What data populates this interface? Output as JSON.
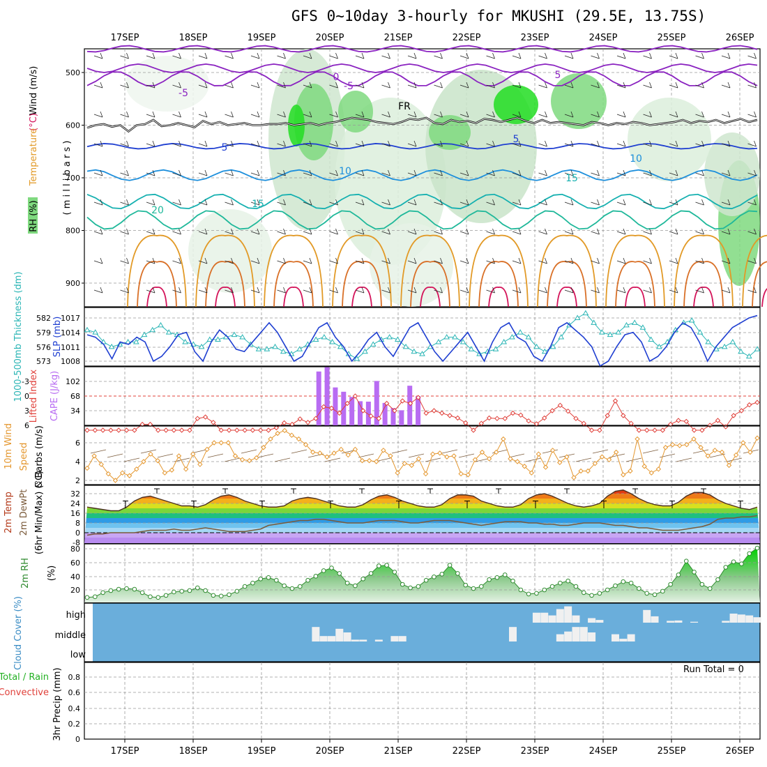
{
  "title": "GFS 0~10day 3-hourly for MKUSHI (29.5E, 13.75S)",
  "dates": [
    "17SEP",
    "18SEP",
    "19SEP",
    "20SEP",
    "21SEP",
    "22SEP",
    "23SEP",
    "24SEP",
    "25SEP",
    "26SEP"
  ],
  "run_total": "Run Total = 0",
  "colors": {
    "rh_green": "#7fd97f",
    "slp": "#1f3fd1",
    "thickness": "#2ab5b5",
    "lifted": "#e0403a",
    "cape": "#b86cf2",
    "wind": "#e4972f",
    "rh2m": "#2f8a2f",
    "cloud_bg": "#6aaedb",
    "cloud_bar": "#f0f0f0"
  },
  "chart_data": [
    {
      "type": "heatmap",
      "name_panel": "upper-air",
      "ylabel_parts": {
        "rh": "RH (%)",
        "temperature": "Temperature",
        "temp_unit": "(°C)",
        "wind": "Wind (m/s)",
        "pressure": "( m i l l i b a r s )"
      },
      "yticks": [
        "500",
        "600",
        "700",
        "800",
        "900"
      ],
      "contour_labels": [
        "5",
        "0",
        "-5",
        "FR",
        "5",
        "10",
        "15",
        "20",
        "-5",
        "5",
        "10",
        "15"
      ],
      "freezing_level_mb": [
        605,
        600,
        598,
        603,
        600,
        612,
        600,
        598,
        590,
        602,
        600,
        596,
        600,
        604,
        592,
        598,
        594,
        600,
        598,
        596,
        600,
        600,
        598,
        598,
        596,
        600,
        598,
        596,
        600,
        596,
        594,
        590,
        586,
        588,
        590,
        594,
        596,
        598,
        594,
        588,
        590,
        586,
        596,
        598,
        590,
        594,
        592,
        596,
        588,
        590,
        594,
        590,
        586,
        592,
        596,
        590,
        596,
        594,
        596,
        598,
        600,
        594,
        596,
        600,
        596,
        598,
        594,
        596,
        600,
        598,
        596,
        594,
        590,
        596,
        592,
        594,
        590,
        596,
        592,
        588,
        594,
        590
      ]
    },
    {
      "type": "line",
      "name_panel": "slp-thickness",
      "ylabel_left": "1000-500mb Thickness (dm)",
      "ylabel_right": "SLP (mb)",
      "yticks_left": [
        "582",
        "579",
        "576",
        "573"
      ],
      "yticks_right": [
        "1017",
        "1014",
        "1011",
        "1008"
      ],
      "series": [
        {
          "name": "SLP (mb)",
          "values": [
            1013.5,
            1013,
            1011.5,
            1008.5,
            1012,
            1011.5,
            1013,
            1012,
            1008,
            1009,
            1011,
            1013.5,
            1014,
            1010,
            1008,
            1012,
            1014.5,
            1013,
            1010.5,
            1010,
            1012,
            1014,
            1016,
            1014,
            1011,
            1008,
            1009,
            1012,
            1015,
            1016,
            1013,
            1011,
            1008,
            1010,
            1012.5,
            1014,
            1011,
            1009,
            1012,
            1015,
            1016,
            1013,
            1010,
            1008,
            1010,
            1012,
            1014,
            1011,
            1008,
            1012,
            1015,
            1016,
            1013,
            1012,
            1009,
            1008,
            1011,
            1015,
            1016,
            1014.5,
            1013,
            1011,
            1007,
            1008,
            1011,
            1013.5,
            1014,
            1012,
            1008,
            1009,
            1011,
            1014,
            1016,
            1015,
            1012,
            1008,
            1011,
            1013,
            1015,
            1016,
            1017,
            1017.5
          ]
        },
        {
          "name": "Thickness (dm)",
          "values": [
            579.5,
            579,
            577,
            576,
            576.5,
            577,
            577,
            578.5,
            579.5,
            580.5,
            579,
            578.5,
            577,
            576.5,
            576,
            577.5,
            577.5,
            578,
            578.5,
            578,
            576.5,
            575.5,
            575.5,
            576,
            575,
            574.5,
            575.5,
            576.5,
            577.5,
            578,
            577,
            576,
            574.5,
            573.5,
            575,
            576.5,
            577.5,
            578,
            577.5,
            576,
            575,
            574.5,
            576,
            577,
            578,
            578,
            577,
            575.5,
            574.5,
            575,
            575.5,
            577,
            578,
            579,
            578,
            576,
            575,
            576,
            578,
            580.5,
            582,
            583,
            581,
            579,
            578.5,
            579,
            580.5,
            581,
            580,
            577.5,
            576,
            577,
            579.5,
            581,
            581.5,
            579,
            577,
            575.5,
            576,
            577,
            575,
            574,
            575.5
          ]
        }
      ]
    },
    {
      "type": "bar",
      "name_panel": "cape-lifted",
      "ylabel_left": "Lifted Index",
      "ylabel_right": "CAPE (J/kg)",
      "yticks_left": [
        "-3",
        "0",
        "3",
        "6"
      ],
      "yticks_right": [
        "102",
        "68",
        "34"
      ],
      "series": [
        {
          "name": "CAPE (J/kg)",
          "values": [
            0,
            0,
            0,
            0,
            0,
            0,
            0,
            0,
            0,
            0,
            0,
            0,
            0,
            0,
            0,
            0,
            0,
            0,
            0,
            0,
            0,
            0,
            0,
            0,
            0,
            0,
            0,
            0,
            125,
            135,
            88,
            78,
            66,
            56,
            55,
            103,
            52,
            40,
            35,
            92,
            68,
            0,
            0,
            0,
            0,
            0,
            0,
            0,
            0,
            0,
            0,
            0,
            0,
            0,
            0,
            0,
            0,
            0,
            0,
            0,
            0,
            0,
            0,
            0,
            0,
            0,
            0,
            0,
            0,
            0,
            0,
            0,
            0,
            0,
            0,
            0,
            0,
            0,
            0,
            0,
            0,
            0
          ]
        },
        {
          "name": "Lifted Index",
          "values": [
            7,
            7,
            7,
            7,
            7,
            7,
            7,
            5.8,
            5.8,
            7,
            7,
            7,
            7,
            7,
            4.6,
            4.3,
            5.4,
            7,
            7,
            7,
            7,
            7,
            7,
            7,
            6.5,
            5.5,
            5.8,
            4.7,
            5.4,
            4.6,
            2.2,
            2.5,
            3.5,
            1.5,
            0,
            3,
            4.1,
            4.6,
            1.5,
            3,
            1,
            1.5,
            0.3,
            3.5,
            3,
            3.5,
            4,
            4.5,
            5.5,
            7,
            5.6,
            4.5,
            4.6,
            4.6,
            3.5,
            3.9,
            5.1,
            5.7,
            4.5,
            3,
            1.9,
            3.1,
            4.6,
            5.6,
            7,
            7,
            4,
            1,
            4,
            5.6,
            7,
            7,
            7,
            7,
            5.8,
            5,
            5.2,
            7,
            7,
            6,
            5,
            6.3,
            4,
            3,
            1.8,
            1.3
          ]
        }
      ]
    },
    {
      "type": "line",
      "name_panel": "wind10m",
      "ylabel_left": "10m Wind",
      "ylabel_mid": "Speed",
      "ylabel_right": "& Barbs (m/s)",
      "yticks": [
        "2",
        "4",
        "6"
      ],
      "series": [
        {
          "name": "10m wind speed",
          "values": [
            3.3,
            4.6,
            3.7,
            2.7,
            2,
            2.8,
            2.5,
            3.2,
            4,
            4.8,
            4.1,
            2.8,
            3.1,
            4.6,
            3.2,
            4.8,
            3.7,
            5.3,
            6,
            6,
            6,
            4.6,
            4.2,
            4.1,
            4.4,
            5.5,
            6.4,
            7,
            7.3,
            6.8,
            6.4,
            5.8,
            5,
            4.9,
            4.5,
            4.9,
            5.3,
            4.7,
            5.3,
            4.1,
            4.1,
            4,
            5.2,
            4.6,
            2.8,
            3.8,
            3.6,
            4.3,
            2.7,
            4.8,
            4.9,
            4.5,
            4.6,
            2.7,
            2.6,
            4.2,
            5,
            4.3,
            5,
            6.4,
            4.3,
            4,
            3.5,
            2.8,
            4.8,
            3.4,
            5.2,
            3.9,
            4.5,
            2.3,
            3,
            3,
            3.8,
            4.5,
            4.2,
            5,
            2.6,
            3,
            6.4,
            3.5,
            2.8,
            3.2,
            5.5,
            5.8,
            5.7,
            5.8,
            6.4,
            5.5,
            4.6,
            5.2,
            5,
            3.6,
            4.7,
            6,
            5,
            6.5
          ]
        }
      ]
    },
    {
      "type": "area",
      "name_panel": "temp2m",
      "ylabel_left": "2m Temp",
      "ylabel_mid": "2m DewPt",
      "ylabel_right": "(6hr Min/Max) (°C)",
      "yticks": [
        "32",
        "24",
        "16",
        "8",
        "0",
        "-8"
      ],
      "series": [
        {
          "name": "2m Temp",
          "values": [
            21,
            20,
            19,
            18,
            18,
            21,
            26,
            29,
            30,
            28,
            26,
            24,
            22,
            22,
            21,
            23,
            27,
            30,
            31,
            29,
            26,
            24,
            22,
            21,
            21,
            22,
            26,
            28,
            29,
            28,
            26,
            24,
            22,
            21,
            21,
            23,
            27,
            30,
            31,
            29,
            26,
            24,
            22,
            21,
            21,
            23,
            28,
            31,
            31,
            30,
            26,
            24,
            22,
            21,
            21,
            23,
            28,
            31,
            32,
            30,
            27,
            24,
            22,
            21,
            22,
            24,
            30,
            34,
            35,
            32,
            28,
            25,
            23,
            22,
            22,
            25,
            30,
            33,
            33,
            31,
            27,
            24,
            22,
            20,
            19,
            21
          ]
        },
        {
          "name": "2m DewPt",
          "values": [
            -2,
            -1,
            -1,
            0,
            0,
            0,
            0,
            1,
            2,
            2,
            2,
            3,
            2,
            2,
            3,
            4,
            3,
            2,
            1,
            1,
            1,
            2,
            3,
            6,
            7,
            8,
            9,
            10,
            10,
            11,
            11,
            10,
            9,
            8,
            8,
            8,
            9,
            10,
            10,
            10,
            9,
            8,
            8,
            9,
            10,
            10,
            10,
            9,
            8,
            7,
            6,
            7,
            8,
            9,
            9,
            9,
            8,
            8,
            7,
            7,
            6,
            6,
            7,
            8,
            8,
            8,
            7,
            6,
            6,
            5,
            4,
            4,
            3,
            2,
            2,
            2,
            3,
            4,
            5,
            7,
            11,
            12,
            12,
            13,
            13,
            14
          ]
        }
      ]
    },
    {
      "type": "area",
      "name_panel": "rh2m",
      "ylabel_left": "2m RH",
      "ylabel_right": "(%)",
      "yticks": [
        "80",
        "60",
        "40",
        "20"
      ],
      "series": [
        {
          "name": "2m RH",
          "values": [
            9,
            10,
            16,
            19,
            21,
            22,
            21,
            16,
            10,
            9,
            12,
            17,
            18,
            19,
            23,
            19,
            12,
            11,
            13,
            18,
            25,
            30,
            36,
            38,
            34,
            26,
            22,
            25,
            34,
            40,
            48,
            52,
            44,
            30,
            26,
            36,
            44,
            55,
            56,
            46,
            28,
            23,
            25,
            34,
            39,
            43,
            56,
            44,
            27,
            22,
            25,
            35,
            38,
            42,
            33,
            20,
            14,
            15,
            20,
            25,
            30,
            33,
            25,
            16,
            12,
            15,
            20,
            26,
            32,
            30,
            22,
            15,
            13,
            18,
            28,
            42,
            62,
            46,
            28,
            22,
            35,
            53,
            61,
            58,
            73,
            81
          ]
        }
      ]
    },
    {
      "type": "bar",
      "name_panel": "cloud",
      "ylabel": "Cloud Cover (%)",
      "ylabels_levels": [
        "high",
        "middle",
        "low"
      ],
      "series": [
        {
          "name": "high",
          "values": [
            0,
            0,
            0,
            0,
            0,
            0,
            0,
            0,
            0,
            0,
            0,
            0,
            0,
            0,
            0,
            0,
            0,
            0,
            0,
            0,
            0,
            0,
            0,
            0,
            0,
            0,
            0,
            0,
            0,
            0,
            0,
            0,
            0,
            0,
            0,
            0,
            0,
            0,
            0,
            0,
            0,
            0,
            0,
            0,
            0,
            0,
            0,
            0,
            0,
            0,
            0,
            0,
            0,
            0,
            0,
            0,
            0,
            55,
            55,
            40,
            75,
            90,
            40,
            0,
            25,
            15,
            0,
            0,
            0,
            0,
            0,
            70,
            35,
            0,
            10,
            12,
            0,
            5,
            0,
            0,
            0,
            10,
            50,
            45,
            40,
            30
          ]
        },
        {
          "name": "middle",
          "values": [
            0,
            0,
            0,
            0,
            0,
            0,
            0,
            0,
            0,
            0,
            0,
            0,
            0,
            0,
            0,
            0,
            0,
            0,
            0,
            0,
            0,
            0,
            0,
            0,
            0,
            0,
            0,
            0,
            0,
            80,
            30,
            30,
            70,
            50,
            10,
            10,
            0,
            10,
            0,
            30,
            30,
            0,
            0,
            0,
            0,
            0,
            0,
            0,
            0,
            0,
            0,
            0,
            0,
            0,
            80,
            0,
            0,
            0,
            0,
            0,
            40,
            55,
            80,
            80,
            50,
            0,
            0,
            40,
            15,
            40,
            0,
            0,
            0,
            0,
            0,
            0,
            0,
            0,
            0,
            0,
            0,
            0,
            0,
            0,
            0,
            0
          ]
        }
      ]
    },
    {
      "type": "bar",
      "name_panel": "precip",
      "ylabel_left": "Total / Rain",
      "ylabel_left2": "Convective",
      "ylabel_right": "3hr Precip (mm)",
      "yticks": [
        "0.8",
        "0.6",
        "0.4",
        "0.2",
        "0"
      ],
      "values": [
        0,
        0,
        0,
        0,
        0,
        0,
        0,
        0,
        0,
        0,
        0,
        0,
        0,
        0,
        0,
        0,
        0,
        0,
        0,
        0,
        0,
        0,
        0,
        0,
        0,
        0,
        0,
        0,
        0,
        0,
        0,
        0,
        0,
        0,
        0,
        0,
        0,
        0,
        0,
        0,
        0,
        0,
        0,
        0,
        0,
        0,
        0,
        0,
        0,
        0,
        0,
        0,
        0,
        0,
        0,
        0,
        0,
        0,
        0,
        0,
        0,
        0,
        0,
        0,
        0,
        0,
        0,
        0,
        0,
        0,
        0,
        0,
        0,
        0,
        0,
        0,
        0,
        0,
        0,
        0,
        0,
        0,
        0,
        0,
        0,
        0,
        0,
        0
      ]
    }
  ]
}
